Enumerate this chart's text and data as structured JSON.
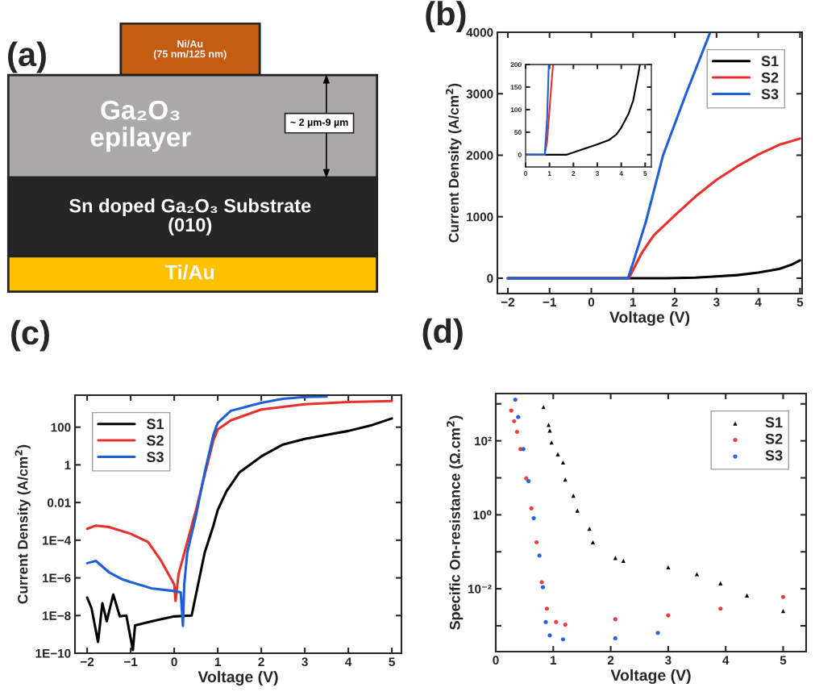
{
  "chart_data": [
    {
      "type": "other",
      "title": "(a)",
      "annotations": [
        "Ni/Au\n(75 nm/125 nm)",
        "Ga₂O₃\nepilayer",
        "~ 2 µm-9 µm",
        "Sn doped Ga₂O₃ Substrate\n(010)",
        "Ti/Au"
      ]
    },
    {
      "type": "line",
      "title": "(b)",
      "xlabel": "Voltage (V)",
      "ylabel": "Current Density (A/cm$^{2}$)",
      "xlim": [
        -2.25,
        5.05
      ],
      "ylim": [
        -250,
        4000
      ],
      "xticks": [
        -2,
        -1,
        0,
        1,
        2,
        3,
        4,
        5
      ],
      "yticks": [
        0,
        1000,
        2000,
        3000,
        4000
      ],
      "legend": "top right",
      "series": [
        {
          "name": "S1",
          "color": "#000000",
          "x": [
            -2,
            0,
            1,
            1.8,
            2.5,
            3,
            3.5,
            4,
            4.5,
            4.8,
            5
          ],
          "values": [
            0,
            0,
            0,
            0,
            10,
            30,
            50,
            90,
            150,
            220,
            290
          ]
        },
        {
          "name": "S2",
          "color": "#e8302a",
          "x": [
            -2,
            0,
            0.9,
            1.2,
            1.5,
            2,
            2.5,
            3,
            3.5,
            4,
            4.5,
            5
          ],
          "values": [
            0,
            0,
            0,
            400,
            700,
            1020,
            1330,
            1600,
            1820,
            2010,
            2170,
            2270
          ]
        },
        {
          "name": "S3",
          "color": "#1f5fd6",
          "x": [
            -2,
            0,
            0.88,
            1.0,
            1.3,
            1.72,
            2.27,
            2.85
          ],
          "values": [
            0,
            0,
            0,
            250,
            900,
            2000,
            3000,
            4000
          ]
        }
      ]
    },
    {
      "type": "line",
      "xlim": [
        0,
        5.26
      ],
      "ylim": [
        -27,
        200
      ],
      "xticks": [
        0,
        1,
        2,
        3,
        4,
        5
      ],
      "yticks": [
        0,
        50,
        100,
        150,
        200
      ],
      "series": [
        {
          "color": "#000000",
          "x": [
            0,
            0.8,
            1.7,
            2,
            2.5,
            3,
            3.5,
            3.8,
            4,
            4.3,
            4.5,
            4.7,
            4.78
          ],
          "values": [
            0,
            0,
            0,
            5,
            14,
            23,
            33,
            45,
            60,
            90,
            120,
            175,
            200
          ]
        },
        {
          "color": "#e8302a",
          "x": [
            0,
            0.8,
            0.9,
            1.0,
            1.1,
            1.15
          ],
          "values": [
            0,
            0,
            30,
            100,
            170,
            200
          ]
        },
        {
          "color": "#1f5fd6",
          "x": [
            0,
            0.8,
            0.9,
            0.97
          ],
          "values": [
            0,
            0,
            80,
            200
          ]
        }
      ]
    },
    {
      "type": "line",
      "title": "(c)",
      "xlabel": "Voltage (V)",
      "ylabel": "Current Density (A/cm$^{2}$)",
      "log": "y",
      "xlim": [
        -2.28,
        5.22
      ],
      "ylim": [
        1e-10,
        5000
      ],
      "xticks": [
        -2,
        -1,
        0,
        1,
        2,
        3,
        4,
        5
      ],
      "yticks": [
        {
          "value": 1e-10,
          "label": "1E−10"
        },
        {
          "value": 1e-08,
          "label": "1E−8"
        },
        {
          "value": 1e-06,
          "label": "1E−6"
        },
        {
          "value": 0.0001,
          "label": "1E−4"
        },
        {
          "value": 0.01,
          "label": "0.01"
        },
        {
          "value": 1,
          "label": "1"
        },
        {
          "value": 100,
          "label": "100"
        }
      ],
      "legend": "top left",
      "series": [
        {
          "name": "S1",
          "color": "#000000",
          "x": [
            -2,
            -1.9,
            -1.75,
            -1.65,
            -1.55,
            -1.4,
            -1.25,
            -1.1,
            -0.95,
            -0.9,
            -0.5,
            0,
            0.4,
            0.5,
            0.7,
            0.9,
            1.0,
            1.2,
            1.5,
            2,
            2.5,
            3,
            3.5,
            4,
            4.5,
            5
          ],
          "values": [
            9e-08,
            2.5e-08,
            4e-10,
            4.5e-08,
            5e-09,
            1.3e-07,
            9e-09,
            1e-08,
            1.5e-10,
            3e-09,
            5e-09,
            9e-09,
            1e-08,
            1.3e-07,
            2.2e-05,
            0.0006,
            0.004,
            0.04,
            0.4,
            2.8,
            12,
            24,
            39,
            63,
            120,
            290
          ]
        },
        {
          "name": "S2",
          "color": "#e8302a",
          "x": [
            -2,
            -1.8,
            -1.5,
            -1,
            -0.6,
            -0.3,
            0,
            0.03,
            0.1,
            0.3,
            0.5,
            0.7,
            0.9,
            1.0,
            1.3,
            2,
            3,
            4,
            5
          ],
          "values": [
            0.0004,
            0.0006,
            0.0005,
            0.00022,
            8e-05,
            8e-06,
            4.5e-07,
            6e-08,
            1.6e-06,
            8e-05,
            0.004,
            0.29,
            20,
            75,
            230,
            870,
            1650,
            2150,
            2450
          ]
        },
        {
          "name": "S3",
          "color": "#1f5fd6",
          "x": [
            -2,
            -1.8,
            -1.7,
            -1.5,
            -1.2,
            -1,
            -0.5,
            0,
            0.15,
            0.2,
            0.23,
            0.3,
            0.5,
            0.7,
            0.9,
            1.0,
            1.3,
            2,
            2.5,
            3,
            3.5
          ],
          "values": [
            6e-06,
            8e-06,
            5e-06,
            2e-06,
            8.5e-07,
            6e-07,
            2.7e-07,
            2e-07,
            1.7e-07,
            2.8e-09,
            4.5e-07,
            2.2e-05,
            0.002,
            0.4,
            39,
            170,
            740,
            1950,
            3200,
            4000,
            4200
          ]
        }
      ]
    },
    {
      "type": "scatter",
      "title": "(d)",
      "xlabel": "Voltage (V)",
      "ylabel": "Specific On-resistance (Ω.cm$^{2}$)",
      "log": "y",
      "xlim": [
        0,
        5.4
      ],
      "ylim": [
        0.0002,
        1900
      ],
      "xticks": [
        0,
        1,
        2,
        3,
        4,
        5
      ],
      "yticks": [
        {
          "value": 0.001,
          "label": null
        },
        {
          "value": 0.01,
          "label": "10⁻²"
        },
        {
          "value": 0.1,
          "label": null
        },
        {
          "value": 1,
          "label": "10⁰"
        },
        {
          "value": 10,
          "label": null
        },
        {
          "value": 100,
          "label": "10²"
        },
        {
          "value": 1000,
          "label": null
        }
      ],
      "legend": "top right",
      "series": [
        {
          "name": "S1",
          "color": "#000000",
          "marker": "triangle",
          "x": [
            0.83,
            0.92,
            0.94,
            0.97,
            1.08,
            1.17,
            1.21,
            1.35,
            1.42,
            1.63,
            1.69,
            2.08,
            2.22,
            3.0,
            3.5,
            3.91,
            4.37,
            5.0
          ],
          "values": [
            820,
            270,
            190,
            90,
            43,
            26,
            9,
            3.3,
            1.3,
            0.42,
            0.18,
            0.068,
            0.057,
            0.038,
            0.025,
            0.014,
            0.0066,
            0.0025
          ]
        },
        {
          "name": "S2",
          "color": "#f03c3c",
          "marker": "circle",
          "x": [
            0.27,
            0.32,
            0.37,
            0.43,
            0.53,
            0.62,
            0.71,
            0.8,
            0.89,
            1.05,
            1.21,
            2.08,
            3.0,
            3.91,
            5.0
          ],
          "values": [
            660,
            340,
            175,
            60,
            9.7,
            1.5,
            0.18,
            0.015,
            0.0029,
            0.00126,
            0.00107,
            0.0015,
            0.0019,
            0.0029,
            0.006
          ]
        },
        {
          "name": "S3",
          "color": "#2266dd",
          "marker": "circle",
          "x": [
            0.34,
            0.39,
            0.48,
            0.57,
            0.66,
            0.76,
            0.82,
            0.87,
            0.94,
            1.17,
            2.08,
            2.82
          ],
          "values": [
            1300,
            440,
            60,
            8.1,
            0.81,
            0.079,
            0.011,
            0.00126,
            0.00055,
            0.00043,
            0.00046,
            0.00064
          ]
        }
      ]
    }
  ]
}
